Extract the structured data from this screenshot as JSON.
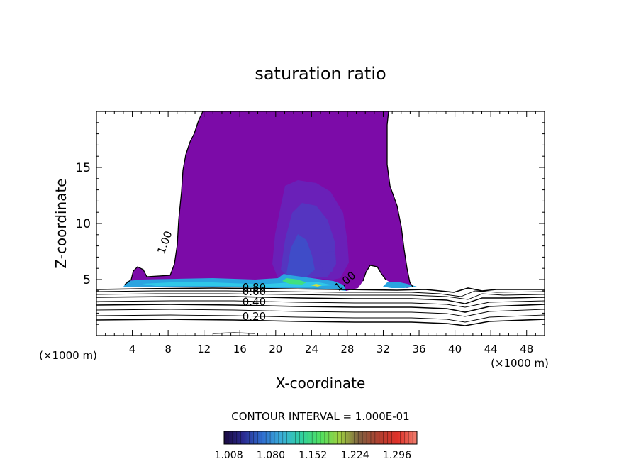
{
  "chart_data": {
    "type": "contour",
    "title": "saturation ratio",
    "xlabel": "X-coordinate",
    "ylabel": "Z-coordinate",
    "x_unit_left": "(×1000 m)",
    "x_unit_right": "(×1000 m)",
    "xlim": [
      0,
      50
    ],
    "ylim": [
      0,
      20
    ],
    "x_ticks": [
      4,
      8,
      12,
      16,
      20,
      24,
      28,
      32,
      36,
      40,
      44,
      48
    ],
    "y_ticks": [
      5,
      10,
      15
    ],
    "contour_line_labels": [
      {
        "text": "1.00",
        "x": 8,
        "y": 8.2,
        "angle": -70
      },
      {
        "text": "1.00",
        "x": 28,
        "y": 4.6,
        "angle": -40
      },
      {
        "text": "0.80",
        "x": 17.6,
        "y": 4.0,
        "angle": 0
      },
      {
        "text": "0.60",
        "x": 17.6,
        "y": 3.6,
        "angle": 0
      },
      {
        "text": "0.40",
        "x": 17.6,
        "y": 2.7,
        "angle": 0
      },
      {
        "text": "0.20",
        "x": 17.6,
        "y": 1.4,
        "angle": 0
      }
    ],
    "contour_interval_text": "CONTOUR INTERVAL = 1.000E-01",
    "colorbar": {
      "labels": [
        "1.008",
        "1.080",
        "1.152",
        "1.224",
        "1.296"
      ],
      "min": 1.0,
      "max": 1.33,
      "colors": [
        "#1a0a40",
        "#2a2a90",
        "#2f6fd0",
        "#3ab0d8",
        "#2fd0a0",
        "#50e060",
        "#a0d040",
        "#806040",
        "#b04030",
        "#e03028",
        "#f08070"
      ]
    },
    "fill_colors": {
      "main": "#7c0ba8",
      "level2": "#6a20b8",
      "level3": "#5535c0",
      "level4": "#3f4cc8",
      "cyan": "#2aa4e0",
      "cyan2": "#30c8e8",
      "green": "#40e080",
      "yellow": "#d0e040"
    }
  }
}
